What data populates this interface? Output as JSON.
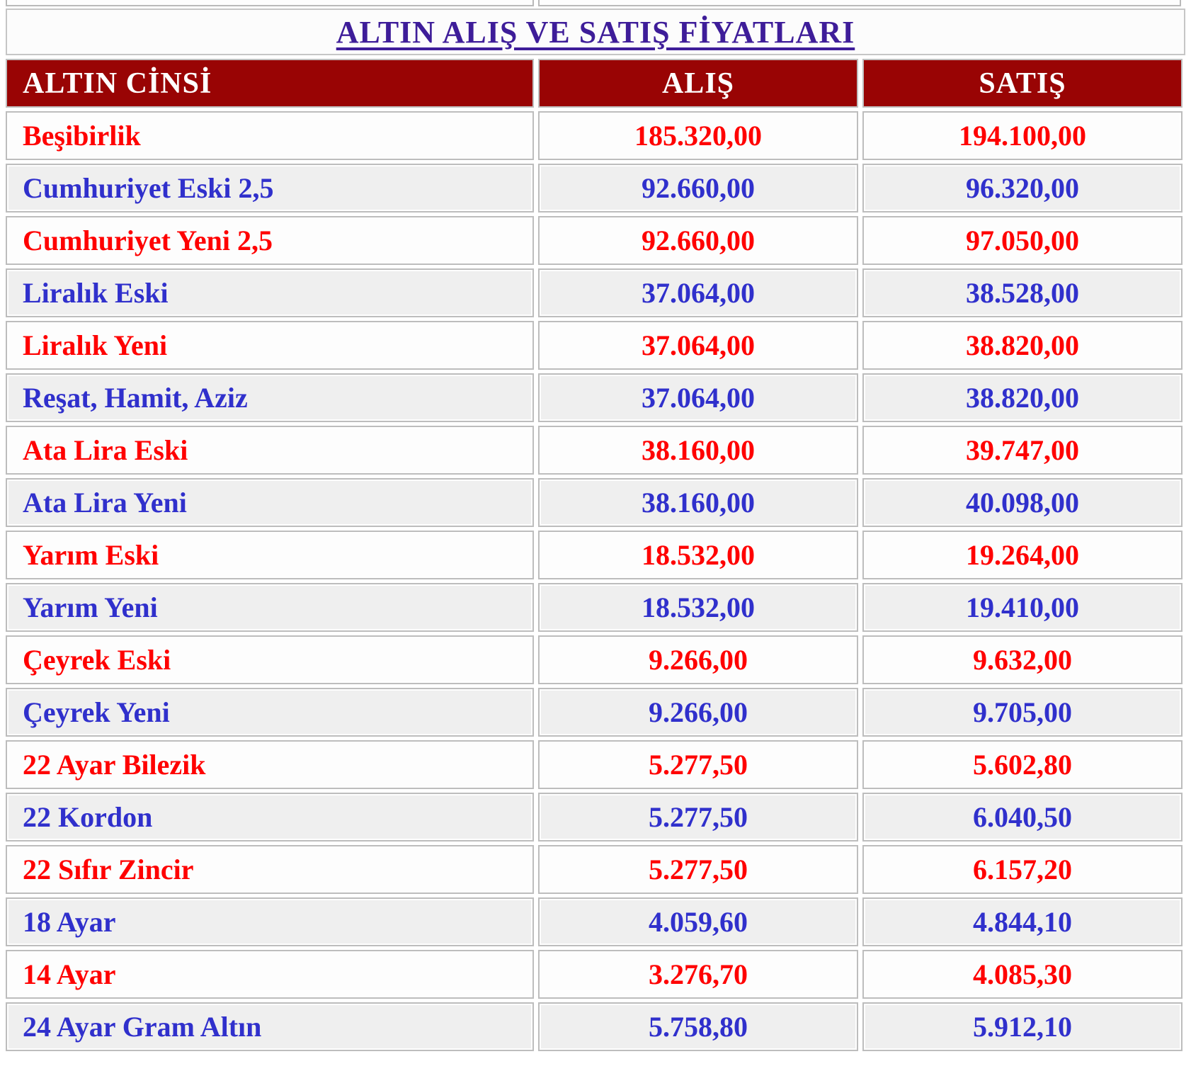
{
  "title": {
    "text": "ALTIN ALIŞ VE SATIŞ FİYATLARI"
  },
  "table": {
    "headers": {
      "type": "ALTIN CİNSİ",
      "buy": "ALIŞ",
      "sell": "SATIŞ"
    },
    "rows": [
      {
        "name": "Beşibirlik",
        "buy": "185.320,00",
        "sell": "194.100,00",
        "variant": "red"
      },
      {
        "name": "Cumhuriyet Eski 2,5",
        "buy": "92.660,00",
        "sell": "96.320,00",
        "variant": "blue"
      },
      {
        "name": "Cumhuriyet Yeni 2,5",
        "buy": "92.660,00",
        "sell": "97.050,00",
        "variant": "red"
      },
      {
        "name": "Liralık Eski",
        "buy": "37.064,00",
        "sell": "38.528,00",
        "variant": "blue"
      },
      {
        "name": "Liralık Yeni",
        "buy": "37.064,00",
        "sell": "38.820,00",
        "variant": "red"
      },
      {
        "name": "Reşat, Hamit, Aziz",
        "buy": "37.064,00",
        "sell": "38.820,00",
        "variant": "blue"
      },
      {
        "name": "Ata Lira Eski",
        "buy": "38.160,00",
        "sell": "39.747,00",
        "variant": "red"
      },
      {
        "name": "Ata Lira Yeni",
        "buy": "38.160,00",
        "sell": "40.098,00",
        "variant": "blue"
      },
      {
        "name": "Yarım Eski",
        "buy": "18.532,00",
        "sell": "19.264,00",
        "variant": "red"
      },
      {
        "name": "Yarım Yeni",
        "buy": "18.532,00",
        "sell": "19.410,00",
        "variant": "blue"
      },
      {
        "name": "Çeyrek Eski",
        "buy": "9.266,00",
        "sell": "9.632,00",
        "variant": "red"
      },
      {
        "name": "Çeyrek Yeni",
        "buy": "9.266,00",
        "sell": "9.705,00",
        "variant": "blue"
      },
      {
        "name": "22 Ayar Bilezik",
        "buy": "5.277,50",
        "sell": "5.602,80",
        "variant": "red"
      },
      {
        "name": "22 Kordon",
        "buy": "5.277,50",
        "sell": "6.040,50",
        "variant": "blue"
      },
      {
        "name": "22 Sıfır Zincir",
        "buy": "5.277,50",
        "sell": "6.157,20",
        "variant": "red"
      },
      {
        "name": "18 Ayar",
        "buy": "4.059,60",
        "sell": "4.844,10",
        "variant": "blue"
      },
      {
        "name": "14 Ayar",
        "buy": "3.276,70",
        "sell": "4.085,30",
        "variant": "red"
      },
      {
        "name": "24 Ayar Gram Altın",
        "buy": "5.758,80",
        "sell": "5.912,10",
        "variant": "blue"
      }
    ]
  },
  "colors": {
    "header_bg": "#990404",
    "header_text": "#FFFFFF",
    "red_row_text": "#FF0000",
    "blue_row_text": "#3030CC",
    "title_text": "#3E1D99",
    "white_row_bg": "#FDFDFD",
    "gray_row_bg": "#EFEFEF"
  }
}
